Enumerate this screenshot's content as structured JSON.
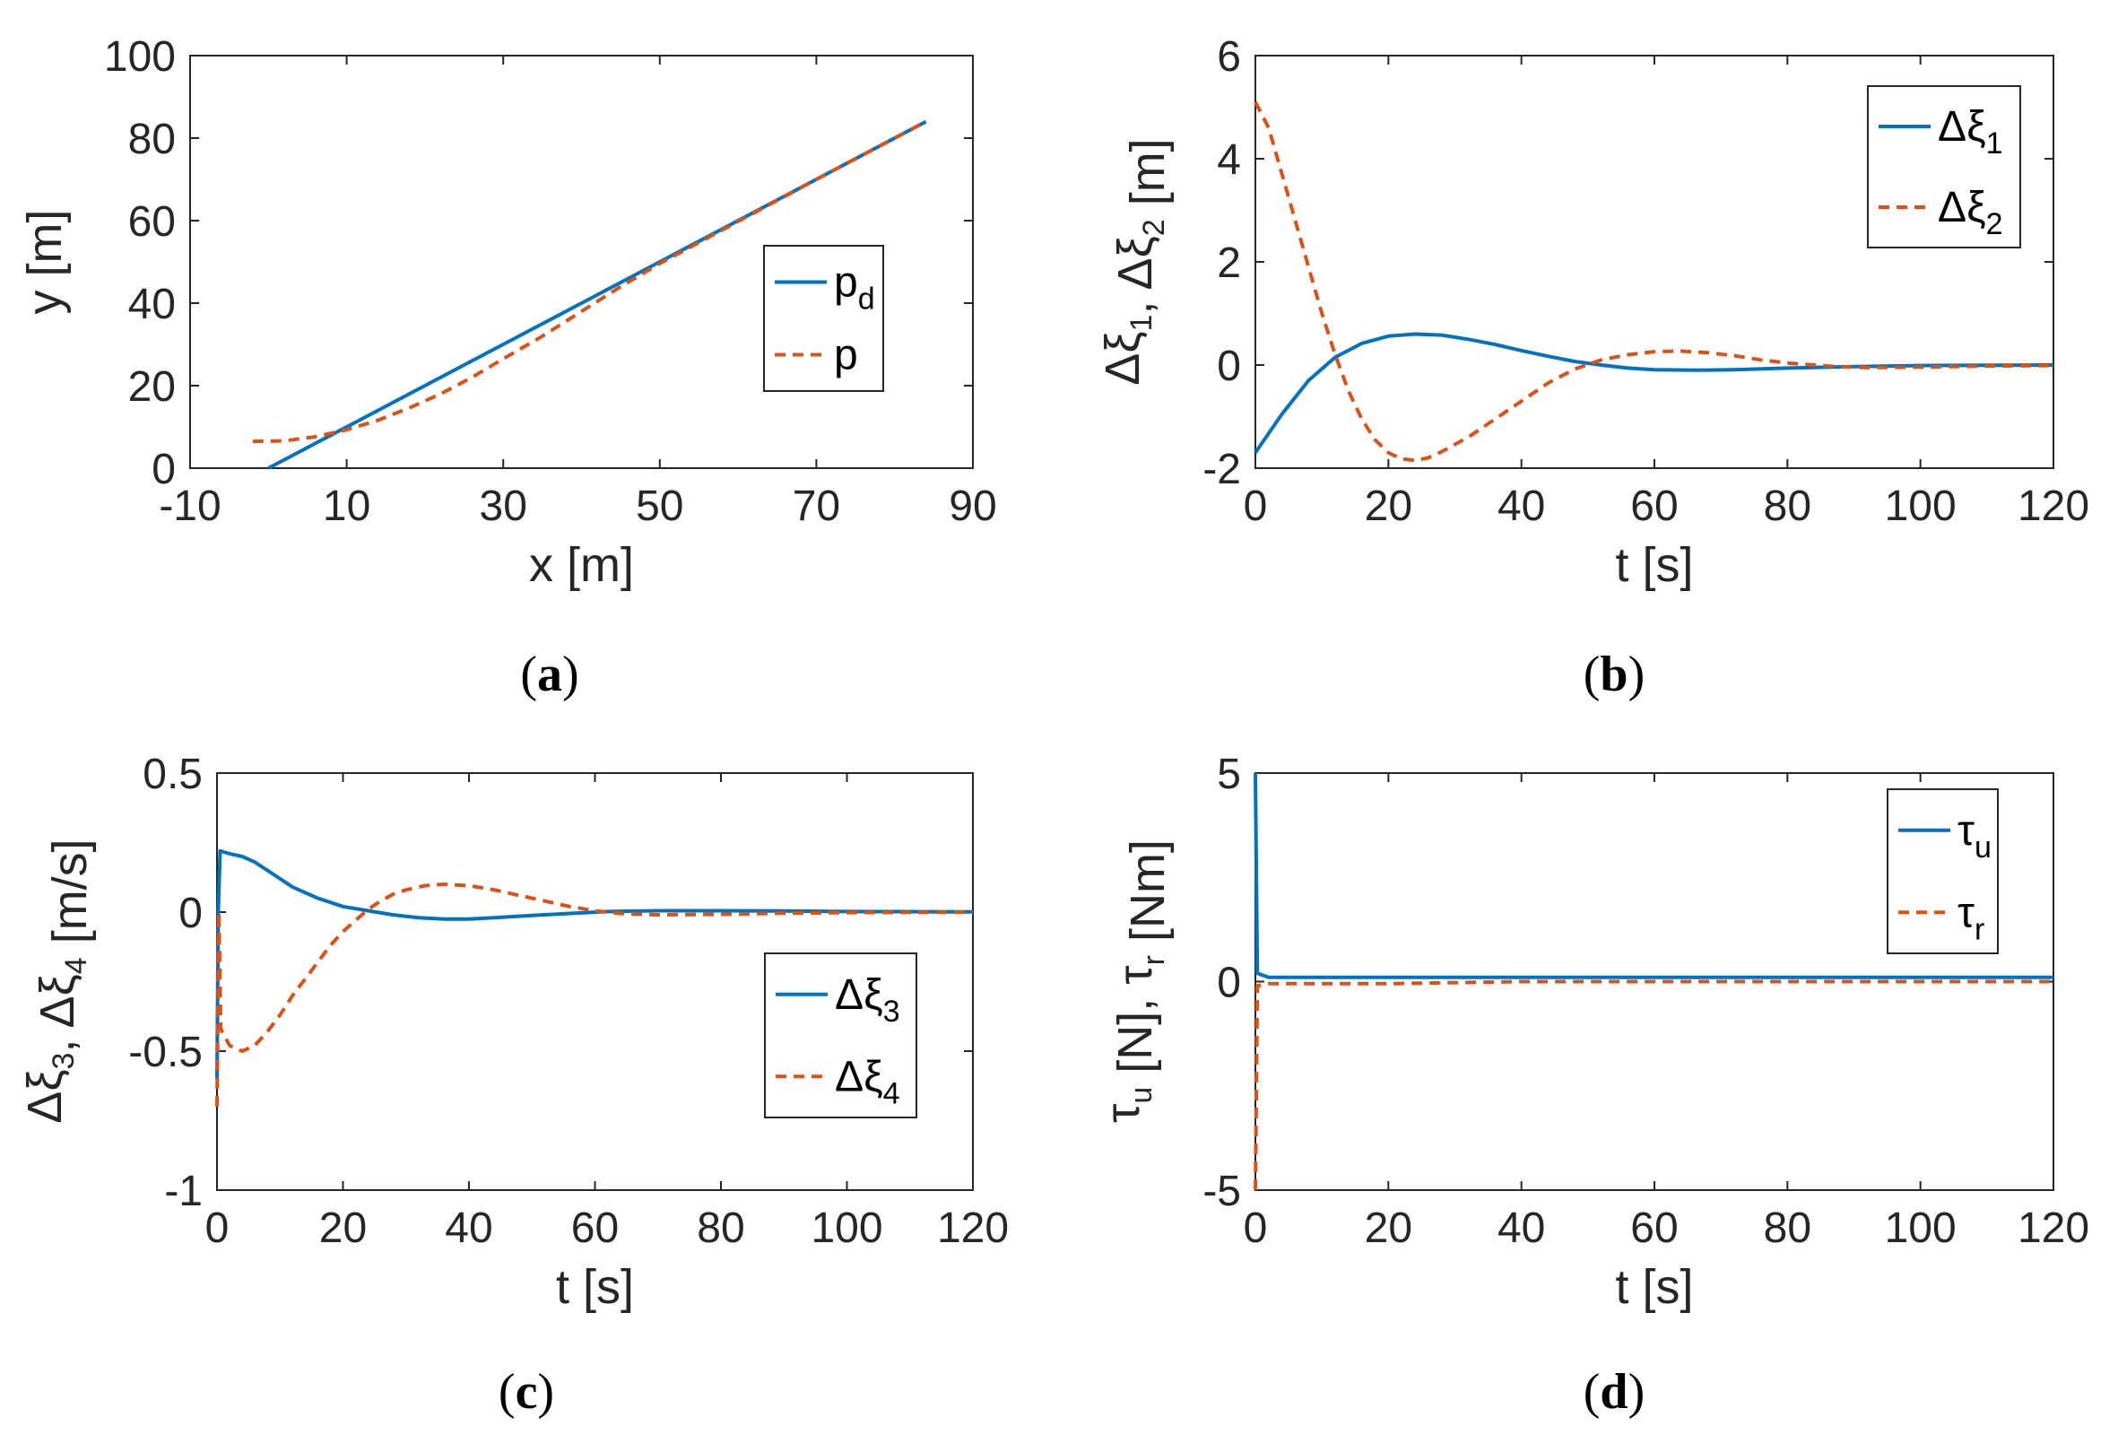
{
  "chart_data": [
    {
      "type": "line",
      "panel": "(a)",
      "caption": "a",
      "xlabel": "x [m]",
      "ylabel": "y [m]",
      "xlim": [
        -10,
        90
      ],
      "ylim": [
        0,
        100
      ],
      "xticks": [
        -10,
        10,
        30,
        50,
        70,
        90
      ],
      "yticks": [
        0,
        20,
        40,
        60,
        80,
        100
      ],
      "legend": {
        "placement": "center-right",
        "entries": [
          {
            "label": "p",
            "sub": "d"
          },
          {
            "label": "p",
            "sub": ""
          }
        ]
      },
      "series": [
        {
          "name": "pd",
          "color": "#0072BD",
          "style": "solid",
          "points": [
            [
              0,
              0
            ],
            [
              84,
              84
            ]
          ]
        },
        {
          "name": "p",
          "color": "#D95319",
          "style": "dashed",
          "points": [
            [
              -2,
              6.5
            ],
            [
              2,
              6.6
            ],
            [
              6,
              7.6
            ],
            [
              10,
              9.3
            ],
            [
              14,
              11.6
            ],
            [
              18,
              14.6
            ],
            [
              22,
              18
            ],
            [
              26,
              22
            ],
            [
              30,
              26.5
            ],
            [
              35,
              32
            ],
            [
              40,
              38
            ],
            [
              45,
              44
            ],
            [
              50,
              49.6
            ],
            [
              60,
              59.8
            ],
            [
              70,
              70
            ],
            [
              84,
              84
            ]
          ]
        }
      ]
    },
    {
      "type": "line",
      "panel": "(b)",
      "caption": "b",
      "xlabel": "t [s]",
      "ylabel": "Δξ1, Δξ2 [m]",
      "ylabel_parts": [
        [
          "Δξ",
          ""
        ],
        [
          "1",
          "sub"
        ],
        [
          ", Δξ",
          ""
        ],
        [
          "2",
          "sub"
        ],
        [
          " [m]",
          ""
        ]
      ],
      "xlim": [
        0,
        120
      ],
      "ylim": [
        -2,
        6
      ],
      "xticks": [
        0,
        20,
        40,
        60,
        80,
        100,
        120
      ],
      "yticks": [
        -2,
        0,
        2,
        4,
        6
      ],
      "legend": {
        "placement": "top-right",
        "entries": [
          {
            "label": "Δξ",
            "sub": "1"
          },
          {
            "label": "Δξ",
            "sub": "2"
          }
        ]
      },
      "series": [
        {
          "name": "Δξ1",
          "color": "#0072BD",
          "style": "solid",
          "points": [
            [
              0,
              -1.7
            ],
            [
              4,
              -0.95
            ],
            [
              8,
              -0.3
            ],
            [
              12,
              0.15
            ],
            [
              16,
              0.42
            ],
            [
              20,
              0.56
            ],
            [
              24,
              0.6
            ],
            [
              28,
              0.58
            ],
            [
              32,
              0.5
            ],
            [
              36,
              0.4
            ],
            [
              40,
              0.28
            ],
            [
              44,
              0.17
            ],
            [
              48,
              0.07
            ],
            [
              52,
              0
            ],
            [
              56,
              -0.06
            ],
            [
              60,
              -0.09
            ],
            [
              66,
              -0.1
            ],
            [
              72,
              -0.09
            ],
            [
              80,
              -0.06
            ],
            [
              90,
              -0.03
            ],
            [
              100,
              -0.01
            ],
            [
              120,
              0
            ]
          ]
        },
        {
          "name": "Δξ2",
          "color": "#D95319",
          "style": "dashed",
          "points": [
            [
              0,
              5.1
            ],
            [
              2,
              4.6
            ],
            [
              4,
              3.7
            ],
            [
              6,
              2.8
            ],
            [
              8,
              1.9
            ],
            [
              10,
              1.0
            ],
            [
              12,
              0.2
            ],
            [
              14,
              -0.5
            ],
            [
              16,
              -1.05
            ],
            [
              18,
              -1.45
            ],
            [
              20,
              -1.7
            ],
            [
              22,
              -1.82
            ],
            [
              24,
              -1.85
            ],
            [
              26,
              -1.8
            ],
            [
              28,
              -1.68
            ],
            [
              32,
              -1.4
            ],
            [
              36,
              -1.05
            ],
            [
              40,
              -0.7
            ],
            [
              44,
              -0.35
            ],
            [
              48,
              -0.08
            ],
            [
              52,
              0.1
            ],
            [
              56,
              0.2
            ],
            [
              60,
              0.26
            ],
            [
              64,
              0.27
            ],
            [
              68,
              0.24
            ],
            [
              72,
              0.18
            ],
            [
              76,
              0.1
            ],
            [
              80,
              0.04
            ],
            [
              86,
              -0.02
            ],
            [
              92,
              -0.05
            ],
            [
              100,
              -0.04
            ],
            [
              110,
              -0.02
            ],
            [
              120,
              -0.01
            ]
          ]
        }
      ]
    },
    {
      "type": "line",
      "panel": "(c)",
      "caption": "c",
      "xlabel": "t [s]",
      "ylabel": "Δξ3, Δξ4 [m/s]",
      "ylabel_parts": [
        [
          "Δξ",
          ""
        ],
        [
          "3",
          "sub"
        ],
        [
          ", Δξ",
          ""
        ],
        [
          "4",
          "sub"
        ],
        [
          " [m/s]",
          ""
        ]
      ],
      "xlim": [
        0,
        120
      ],
      "ylim": [
        -1,
        0.5
      ],
      "xticks": [
        0,
        20,
        40,
        60,
        80,
        100,
        120
      ],
      "yticks": [
        -1,
        -0.5,
        0,
        0.5
      ],
      "yticklabels": [
        "-1",
        "-0.5",
        "0",
        "0.5"
      ],
      "legend": {
        "placement": "bottom-right",
        "entries": [
          {
            "label": "Δξ",
            "sub": "3"
          },
          {
            "label": "Δξ",
            "sub": "4"
          }
        ]
      },
      "series": [
        {
          "name": "Δξ3",
          "color": "#0072BD",
          "style": "solid",
          "points": [
            [
              0,
              -0.6
            ],
            [
              0.2,
              0.0
            ],
            [
              0.5,
              0.22
            ],
            [
              2,
              0.21
            ],
            [
              4,
              0.2
            ],
            [
              6,
              0.18
            ],
            [
              8,
              0.15
            ],
            [
              10,
              0.12
            ],
            [
              12,
              0.09
            ],
            [
              14,
              0.07
            ],
            [
              16,
              0.05
            ],
            [
              20,
              0.02
            ],
            [
              24,
              0.005
            ],
            [
              28,
              -0.01
            ],
            [
              32,
              -0.02
            ],
            [
              36,
              -0.025
            ],
            [
              40,
              -0.025
            ],
            [
              44,
              -0.02
            ],
            [
              50,
              -0.012
            ],
            [
              56,
              -0.005
            ],
            [
              62,
              0.002
            ],
            [
              70,
              0.005
            ],
            [
              80,
              0.005
            ],
            [
              90,
              0.004
            ],
            [
              100,
              0.002
            ],
            [
              120,
              0.001
            ]
          ]
        },
        {
          "name": "Δξ4",
          "color": "#D95319",
          "style": "dashed",
          "points": [
            [
              0,
              -0.7
            ],
            [
              0.3,
              0.0
            ],
            [
              0.6,
              -0.42
            ],
            [
              2,
              -0.48
            ],
            [
              4,
              -0.5
            ],
            [
              6,
              -0.48
            ],
            [
              8,
              -0.43
            ],
            [
              10,
              -0.37
            ],
            [
              12,
              -0.3
            ],
            [
              14,
              -0.24
            ],
            [
              16,
              -0.18
            ],
            [
              18,
              -0.12
            ],
            [
              20,
              -0.07
            ],
            [
              22,
              -0.03
            ],
            [
              24,
              0.01
            ],
            [
              26,
              0.04
            ],
            [
              28,
              0.065
            ],
            [
              30,
              0.08
            ],
            [
              33,
              0.095
            ],
            [
              36,
              0.1
            ],
            [
              40,
              0.095
            ],
            [
              44,
              0.08
            ],
            [
              48,
              0.06
            ],
            [
              52,
              0.04
            ],
            [
              56,
              0.02
            ],
            [
              60,
              0.005
            ],
            [
              64,
              -0.005
            ],
            [
              70,
              -0.01
            ],
            [
              80,
              -0.008
            ],
            [
              90,
              -0.004
            ],
            [
              100,
              -0.002
            ],
            [
              120,
              0
            ]
          ]
        }
      ]
    },
    {
      "type": "line",
      "panel": "(d)",
      "caption": "d",
      "xlabel": "t [s]",
      "ylabel": "τu [N], τr [Nm]",
      "ylabel_parts": [
        [
          "τ",
          ""
        ],
        [
          "u",
          "sub"
        ],
        [
          " [N], τ",
          ""
        ],
        [
          "r",
          "sub"
        ],
        [
          " [Nm]",
          ""
        ]
      ],
      "xlim": [
        0,
        120
      ],
      "ylim": [
        -5,
        5
      ],
      "xticks": [
        0,
        20,
        40,
        60,
        80,
        100,
        120
      ],
      "yticks": [
        -5,
        0,
        5
      ],
      "legend": {
        "placement": "top-right",
        "entries": [
          {
            "label": "τ",
            "sub": "u"
          },
          {
            "label": "τ",
            "sub": "r"
          }
        ]
      },
      "series": [
        {
          "name": "τu",
          "color": "#0072BD",
          "style": "solid",
          "points": [
            [
              0,
              5
            ],
            [
              0.3,
              0.2
            ],
            [
              2,
              0.1
            ],
            [
              10,
              0.1
            ],
            [
              120,
              0.1
            ]
          ]
        },
        {
          "name": "τr",
          "color": "#D95319",
          "style": "dashed",
          "points": [
            [
              0,
              -5
            ],
            [
              0.3,
              -0.1
            ],
            [
              2,
              -0.05
            ],
            [
              20,
              -0.05
            ],
            [
              40,
              0
            ],
            [
              120,
              0
            ]
          ]
        }
      ]
    }
  ]
}
